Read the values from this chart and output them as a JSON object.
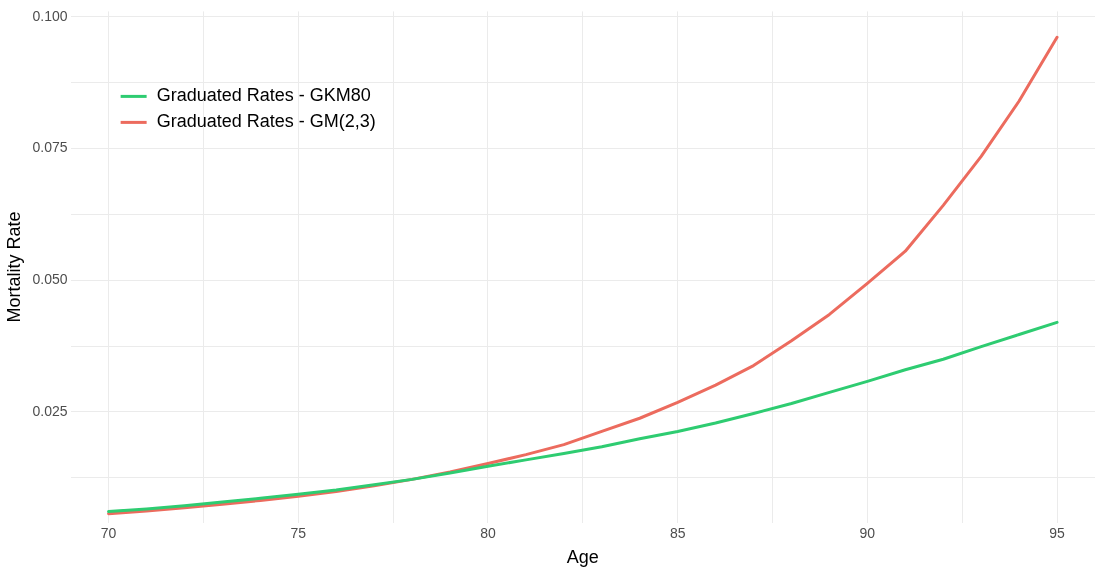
{
  "chart_data": {
    "type": "line",
    "xlabel": "Age",
    "ylabel": "Mortality Rate",
    "x": [
      70,
      71,
      72,
      73,
      74,
      75,
      76,
      77,
      78,
      79,
      80,
      81,
      82,
      83,
      84,
      85,
      86,
      87,
      88,
      89,
      90,
      91,
      92,
      93,
      94,
      95
    ],
    "series": [
      {
        "name": "Graduated Rates - GKM80",
        "color": "#2ecc71",
        "values": [
          0.0061,
          0.0066,
          0.0072,
          0.0079,
          0.0086,
          0.0094,
          0.0102,
          0.0112,
          0.0122,
          0.0134,
          0.0147,
          0.0159,
          0.0171,
          0.0184,
          0.0199,
          0.0213,
          0.0229,
          0.0247,
          0.0266,
          0.0287,
          0.0308,
          0.033,
          0.035,
          0.0374,
          0.0397,
          0.042
        ]
      },
      {
        "name": "Graduated Rates - GM(2,3)",
        "color": "#ec6b5e",
        "values": [
          0.0057,
          0.0062,
          0.0068,
          0.0075,
          0.0082,
          0.009,
          0.0099,
          0.011,
          0.0122,
          0.0136,
          0.0152,
          0.0169,
          0.0188,
          0.0213,
          0.0238,
          0.0268,
          0.0301,
          0.0338,
          0.0385,
          0.0435,
          0.0494,
          0.0555,
          0.0642,
          0.0735,
          0.084,
          0.0961
        ]
      }
    ],
    "xlim": [
      69,
      96
    ],
    "xticks": [
      70,
      {
        "value": 72.5,
        "label": null
      },
      75,
      {
        "value": 77.5,
        "label": null
      },
      80,
      {
        "value": 82.5,
        "label": null
      },
      85,
      {
        "value": 87.5,
        "label": null
      },
      90,
      {
        "value": 92.5,
        "label": null
      },
      95
    ],
    "ylim": [
      0.004,
      0.101
    ],
    "yticks": [
      {
        "value": 0.0125,
        "label": null
      },
      {
        "value": 0.025,
        "label": "0.025"
      },
      {
        "value": 0.0375,
        "label": null
      },
      {
        "value": 0.05,
        "label": "0.050"
      },
      {
        "value": 0.0625,
        "label": null
      },
      {
        "value": 0.075,
        "label": "0.075"
      },
      {
        "value": 0.0875,
        "label": null
      },
      {
        "value": 0.1,
        "label": "0.100"
      }
    ],
    "grid": true,
    "legend": "top left",
    "marker": "none",
    "line_style": "solid"
  }
}
